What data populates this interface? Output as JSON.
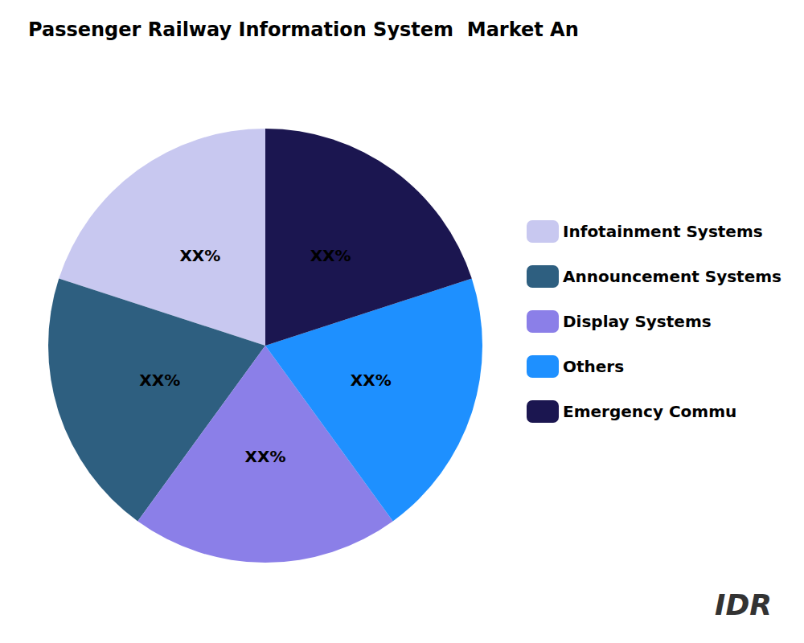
{
  "chart_data": {
    "type": "pie",
    "title": "Passenger Railway Information System  Market An",
    "categories": [
      "Infotainment Systems",
      "Announcement Systems",
      "Display Systems",
      "Others",
      "Emergency Commu"
    ],
    "values": [
      20,
      20,
      20,
      20,
      20
    ],
    "value_labels": [
      "XX%",
      "XX%",
      "XX%",
      "XX%",
      "XX%"
    ],
    "colors": [
      "#C8C8F0",
      "#2E5F80",
      "#8B7FE8",
      "#1E90FF",
      "#1B1650"
    ],
    "data_labels": true,
    "legend": "right",
    "annotations": [
      "IDR"
    ]
  }
}
